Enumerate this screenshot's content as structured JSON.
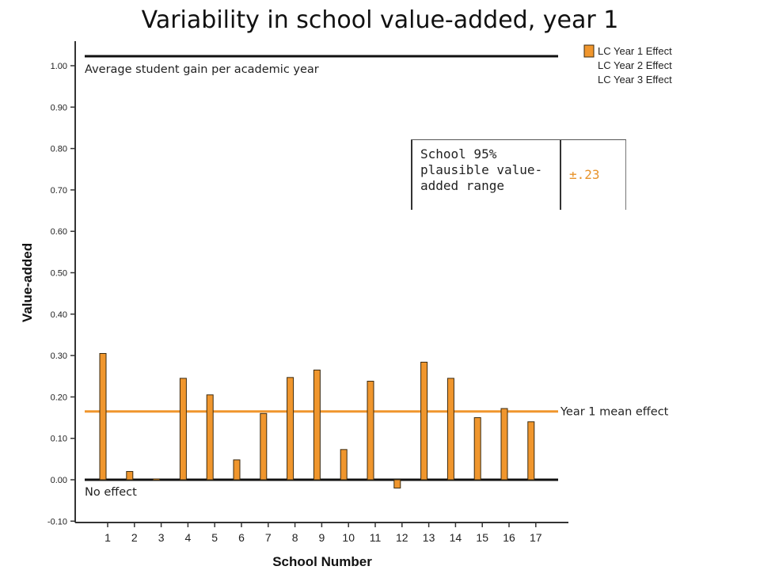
{
  "chart_data": {
    "type": "bar",
    "title": "Variability in school value-added, year 1",
    "xlabel": "School Number",
    "ylabel": "Value-added",
    "categories": [
      "1",
      "2",
      "3",
      "4",
      "5",
      "6",
      "7",
      "8",
      "9",
      "10",
      "11",
      "12",
      "13",
      "14",
      "15",
      "16",
      "17"
    ],
    "series": [
      {
        "name": "LC Year 1 Effect",
        "color": "#f0962d",
        "values": [
          0.305,
          0.02,
          0.002,
          0.245,
          0.205,
          0.048,
          0.16,
          0.247,
          0.265,
          0.073,
          0.238,
          -0.02,
          0.284,
          0.245,
          0.15,
          0.172,
          0.14
        ]
      }
    ],
    "ylim": [
      -0.1,
      1.05
    ],
    "yticks": [
      "1.00",
      "0.90",
      "0.80",
      "0.70",
      "0.60",
      "0.50",
      "0.40",
      "0.30",
      "0.20",
      "0.10",
      "0.00",
      "-0.10"
    ],
    "legend": {
      "position": "top-right",
      "entries": [
        "LC Year 1 Effect",
        "LC Year 2 Effect",
        "LC Year 3 Effect"
      ]
    },
    "reference_lines": [
      {
        "label": "Average student gain per academic year",
        "value": 1.0,
        "color": "#111111"
      },
      {
        "label": "Year 1 mean effect",
        "value": 0.165,
        "color": "#f0962d"
      },
      {
        "label": "No effect",
        "value": 0.0,
        "color": "#111111"
      }
    ],
    "info_box": {
      "label": "School 95% plausible value-added range",
      "value": "±.23",
      "value_color": "#e8932a"
    }
  }
}
